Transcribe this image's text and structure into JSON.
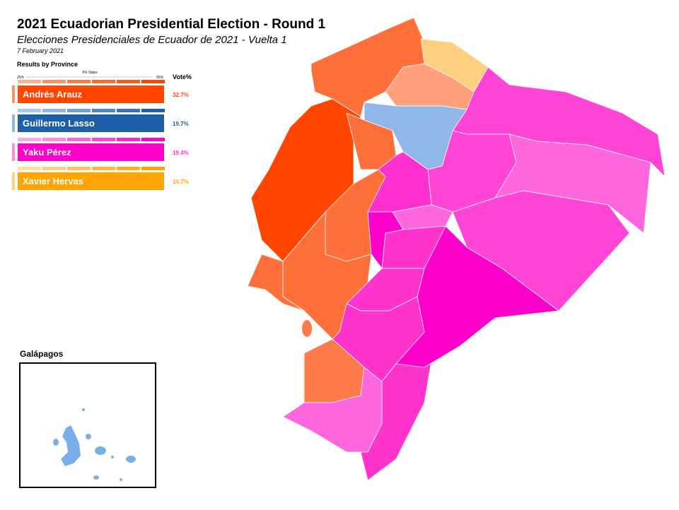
{
  "header": {
    "title": "2021 Ecuadorian Presidential Election - Round 1",
    "subtitle": "Elecciones Presidenciales de Ecuador de 2021 - Vuelta 1",
    "date": "7 February 2021"
  },
  "legend": {
    "heading": "Results by Province",
    "scale_min": "25%",
    "scale_step": "5% Steps",
    "scale_max": "55%",
    "vote_header": "Vote%",
    "candidates": [
      {
        "name": "Andrés Arauz",
        "vote": "32.7%"
      },
      {
        "name": "Guillermo Lasso",
        "vote": "19.7%"
      },
      {
        "name": "Yaku Pérez",
        "vote": "19.4%"
      },
      {
        "name": "Xavier Hervas",
        "vote": "15.7%"
      }
    ]
  },
  "inset": {
    "label": "Galápagos"
  }
}
